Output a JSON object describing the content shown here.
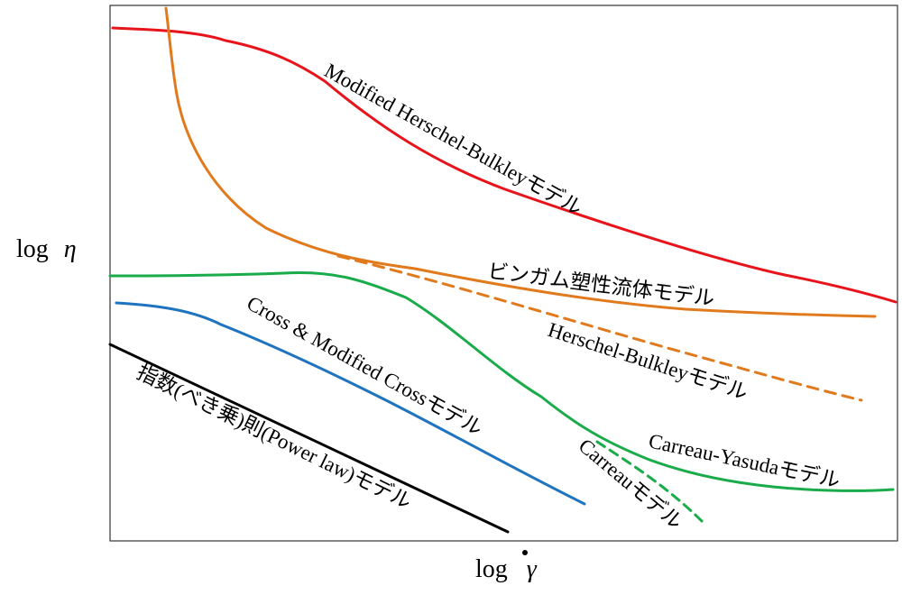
{
  "chart_data": {
    "type": "line",
    "xlabel": "log γ̇",
    "ylabel": "log η",
    "xlabel_prefix": "log",
    "xlabel_symbol": "γ",
    "ylabel_prefix": "log",
    "ylabel_symbol": "η",
    "grid": false,
    "series": [
      {
        "key": "mhb",
        "name": "Modified Herschel-Bulkleyモデル",
        "color": "#e8141b",
        "style": "solid"
      },
      {
        "key": "bingham",
        "name": "ビンガム塑性流体モデル",
        "color": "#e07a1c",
        "style": "solid"
      },
      {
        "key": "hb",
        "name": "Herschel-Bulkleyモデル",
        "color": "#e07a1c",
        "style": "dashed"
      },
      {
        "key": "cy",
        "name": "Carreau-Yasudaモデル",
        "color": "#1aab4b",
        "style": "solid"
      },
      {
        "key": "carreau",
        "name": "Carreauモデル",
        "color": "#1aab4b",
        "style": "dashed"
      },
      {
        "key": "cross",
        "name": "Cross & Modified Crossモデル",
        "color": "#1f74c0",
        "style": "solid"
      },
      {
        "key": "power",
        "name": "指数(べき乗)則(Power law)モデル",
        "color": "#000000",
        "style": "solid"
      }
    ]
  }
}
